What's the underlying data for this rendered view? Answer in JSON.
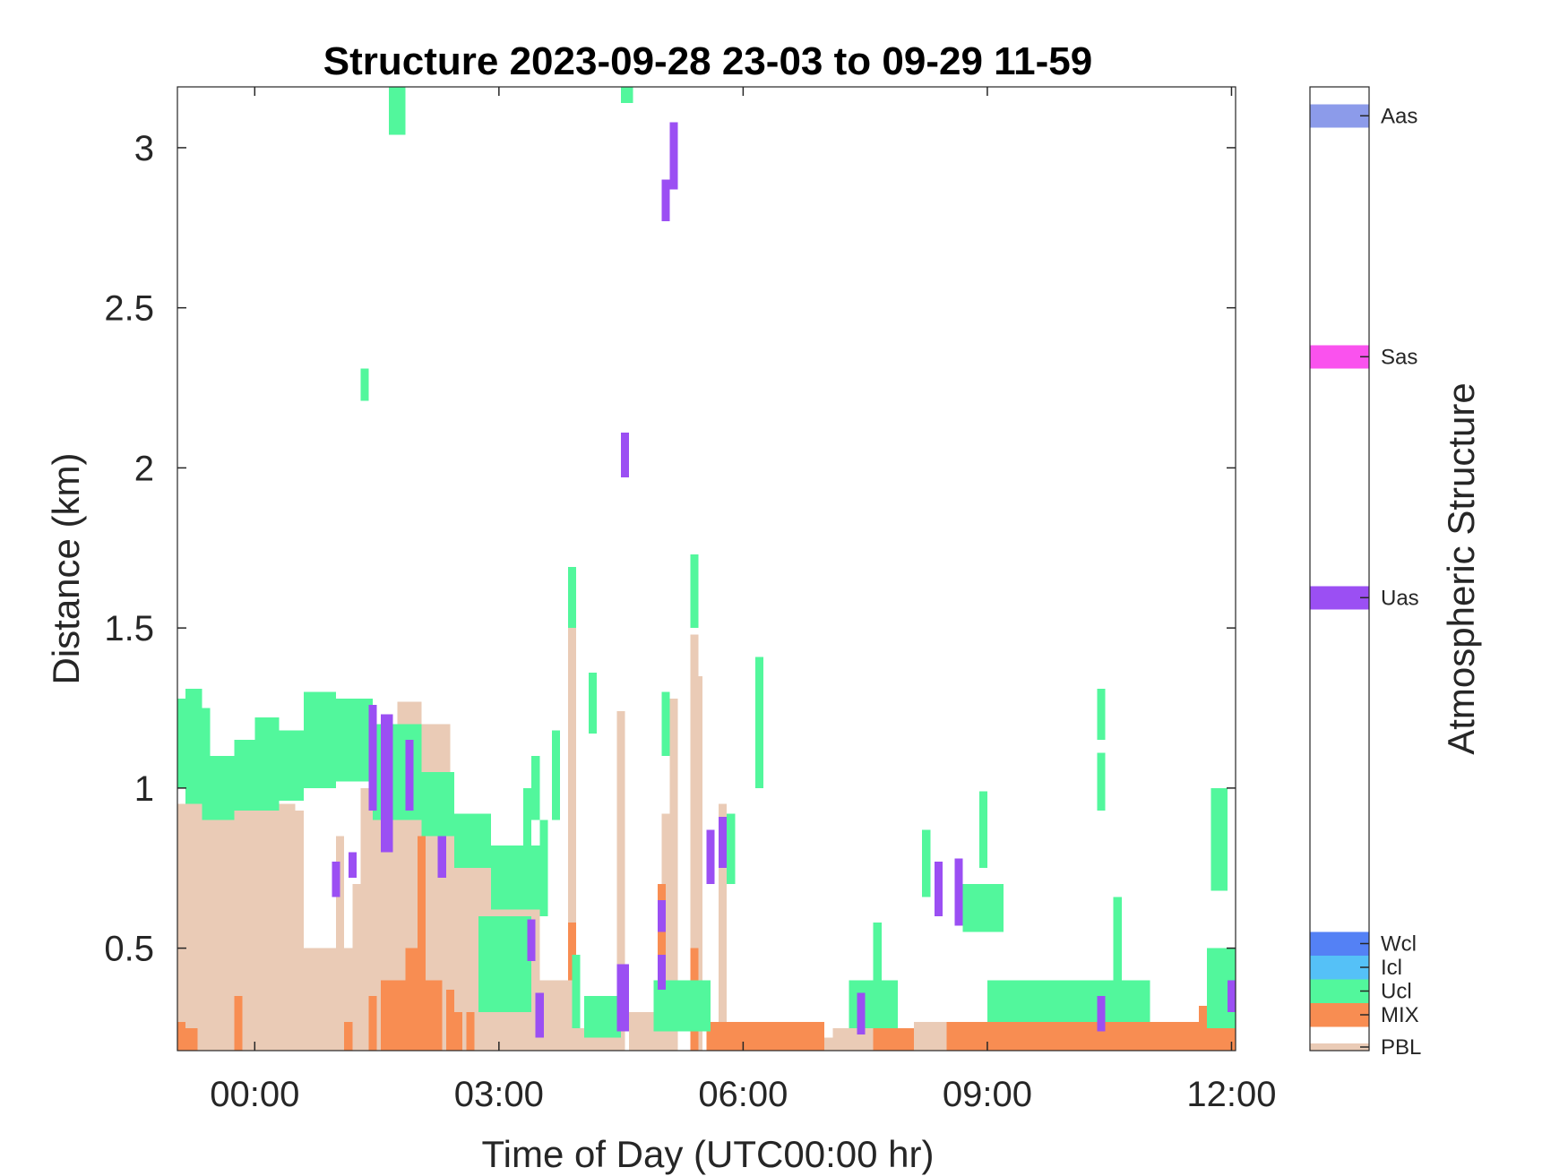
{
  "chart_data": {
    "type": "heatmap",
    "title": "Structure 2023-09-28 23-03 to 09-29 11-59",
    "xlabel": "Time of Day (UTC00:00 hr)",
    "ylabel": "Distance (km)",
    "xlim_hours": [
      -0.95,
      12.05
    ],
    "ylim_km": [
      0.18,
      3.19
    ],
    "x_ticks": [
      {
        "hours": 0,
        "label": "00:00"
      },
      {
        "hours": 3,
        "label": "03:00"
      },
      {
        "hours": 6,
        "label": "06:00"
      },
      {
        "hours": 9,
        "label": "09:00"
      },
      {
        "hours": 12,
        "label": "12:00"
      }
    ],
    "y_ticks": [
      {
        "km": 0.5,
        "label": "0.5"
      },
      {
        "km": 1,
        "label": "1"
      },
      {
        "km": 1.5,
        "label": "1.5"
      },
      {
        "km": 2,
        "label": "2"
      },
      {
        "km": 2.5,
        "label": "2.5"
      },
      {
        "km": 3,
        "label": "3"
      }
    ],
    "colorbar": {
      "label": "Atmospheric Structure",
      "classes": [
        {
          "code": "PBL",
          "color": "#EACBB6"
        },
        {
          "code": "MIX",
          "color": "#F88D52"
        },
        {
          "code": "Ucl",
          "color": "#52F79C"
        },
        {
          "code": "Icl",
          "color": "#55C1F7"
        },
        {
          "code": "Wcl",
          "color": "#5481F5"
        },
        {
          "code": "Uas",
          "color": "#9B4FF3"
        },
        {
          "code": "Sas",
          "color": "#FA52EE"
        },
        {
          "code": "Aas",
          "color": "#8C9BEA"
        }
      ]
    },
    "cells": [
      {
        "cls": "PBL",
        "x0": -0.95,
        "x1": 0.5,
        "y0": 0.18,
        "y1": 0.95
      },
      {
        "cls": "PBL",
        "x0": 0.5,
        "x1": 0.6,
        "y0": 0.18,
        "y1": 0.93
      },
      {
        "cls": "PBL",
        "x0": 0.6,
        "x1": 1.6,
        "y0": 0.18,
        "y1": 0.5
      },
      {
        "cls": "PBL",
        "x0": 1.0,
        "x1": 1.1,
        "y0": 0.18,
        "y1": 0.85
      },
      {
        "cls": "PBL",
        "x0": 1.2,
        "x1": 1.3,
        "y0": 0.18,
        "y1": 0.7
      },
      {
        "cls": "PBL",
        "x0": 1.3,
        "x1": 1.45,
        "y0": 0.18,
        "y1": 1.0
      },
      {
        "cls": "PBL",
        "x0": 1.45,
        "x1": 1.75,
        "y0": 0.18,
        "y1": 1.18
      },
      {
        "cls": "PBL",
        "x0": 1.75,
        "x1": 2.05,
        "y0": 0.18,
        "y1": 1.27
      },
      {
        "cls": "PBL",
        "x0": 2.05,
        "x1": 2.4,
        "y0": 0.18,
        "y1": 1.2
      },
      {
        "cls": "PBL",
        "x0": 2.4,
        "x1": 2.9,
        "y0": 0.18,
        "y1": 0.85
      },
      {
        "cls": "PBL",
        "x0": 2.9,
        "x1": 3.5,
        "y0": 0.18,
        "y1": 0.65
      },
      {
        "cls": "PBL",
        "x0": 3.5,
        "x1": 3.85,
        "y0": 0.18,
        "y1": 0.4
      },
      {
        "cls": "PBL",
        "x0": 3.85,
        "x1": 3.95,
        "y0": 0.18,
        "y1": 1.5
      },
      {
        "cls": "PBL",
        "x0": 3.95,
        "x1": 4.45,
        "y0": 0.18,
        "y1": 0.25
      },
      {
        "cls": "PBL",
        "x0": 4.45,
        "x1": 4.55,
        "y0": 0.18,
        "y1": 1.24
      },
      {
        "cls": "PBL",
        "x0": 4.6,
        "x1": 5.0,
        "y0": 0.18,
        "y1": 0.3
      },
      {
        "cls": "PBL",
        "x0": 5.0,
        "x1": 5.1,
        "y0": 0.18,
        "y1": 0.92
      },
      {
        "cls": "PBL",
        "x0": 5.1,
        "x1": 5.2,
        "y0": 0.18,
        "y1": 1.28
      },
      {
        "cls": "PBL",
        "x0": 5.35,
        "x1": 5.45,
        "y0": 0.18,
        "y1": 1.48
      },
      {
        "cls": "PBL",
        "x0": 5.45,
        "x1": 5.5,
        "y0": 0.18,
        "y1": 1.35
      },
      {
        "cls": "PBL",
        "x0": 5.7,
        "x1": 5.8,
        "y0": 0.18,
        "y1": 0.95
      },
      {
        "cls": "PBL",
        "x0": 5.8,
        "x1": 12.05,
        "y0": 0.18,
        "y1": 0.22
      },
      {
        "cls": "PBL",
        "x0": 7.1,
        "x1": 7.6,
        "y0": 0.18,
        "y1": 0.25
      },
      {
        "cls": "PBL",
        "x0": 8.1,
        "x1": 8.5,
        "y0": 0.18,
        "y1": 0.27
      },
      {
        "cls": "MIX",
        "x0": -0.95,
        "x1": -0.85,
        "y0": 0.18,
        "y1": 0.27
      },
      {
        "cls": "MIX",
        "x0": -0.85,
        "x1": -0.7,
        "y0": 0.18,
        "y1": 0.25
      },
      {
        "cls": "MIX",
        "x0": -0.25,
        "x1": -0.15,
        "y0": 0.18,
        "y1": 0.35
      },
      {
        "cls": "MIX",
        "x0": 1.1,
        "x1": 1.2,
        "y0": 0.18,
        "y1": 0.27
      },
      {
        "cls": "MIX",
        "x0": 1.4,
        "x1": 1.5,
        "y0": 0.18,
        "y1": 0.35
      },
      {
        "cls": "MIX",
        "x0": 1.55,
        "x1": 1.85,
        "y0": 0.18,
        "y1": 0.4
      },
      {
        "cls": "MIX",
        "x0": 1.85,
        "x1": 2.0,
        "y0": 0.18,
        "y1": 0.5
      },
      {
        "cls": "MIX",
        "x0": 2.0,
        "x1": 2.1,
        "y0": 0.18,
        "y1": 0.85
      },
      {
        "cls": "MIX",
        "x0": 2.1,
        "x1": 2.3,
        "y0": 0.18,
        "y1": 0.4
      },
      {
        "cls": "MIX",
        "x0": 2.35,
        "x1": 2.45,
        "y0": 0.18,
        "y1": 0.37
      },
      {
        "cls": "MIX",
        "x0": 2.45,
        "x1": 2.55,
        "y0": 0.18,
        "y1": 0.3
      },
      {
        "cls": "MIX",
        "x0": 2.6,
        "x1": 2.7,
        "y0": 0.18,
        "y1": 0.3
      },
      {
        "cls": "MIX",
        "x0": 3.85,
        "x1": 3.95,
        "y0": 0.4,
        "y1": 0.58
      },
      {
        "cls": "MIX",
        "x0": 4.95,
        "x1": 5.05,
        "y0": 0.4,
        "y1": 0.7
      },
      {
        "cls": "MIX",
        "x0": 5.35,
        "x1": 5.45,
        "y0": 0.18,
        "y1": 0.5
      },
      {
        "cls": "MIX",
        "x0": 5.55,
        "x1": 7.0,
        "y0": 0.18,
        "y1": 0.27
      },
      {
        "cls": "MIX",
        "x0": 7.6,
        "x1": 8.1,
        "y0": 0.18,
        "y1": 0.25
      },
      {
        "cls": "MIX",
        "x0": 8.5,
        "x1": 12.05,
        "y0": 0.18,
        "y1": 0.27
      },
      {
        "cls": "MIX",
        "x0": 9.9,
        "x1": 10.4,
        "y0": 0.18,
        "y1": 0.3
      },
      {
        "cls": "MIX",
        "x0": 11.6,
        "x1": 12.05,
        "y0": 0.18,
        "y1": 0.32
      },
      {
        "cls": "Ucl",
        "x0": -0.95,
        "x1": -0.85,
        "y0": 1.0,
        "y1": 1.28
      },
      {
        "cls": "Ucl",
        "x0": -0.85,
        "x1": -0.65,
        "y0": 0.95,
        "y1": 1.31
      },
      {
        "cls": "Ucl",
        "x0": -0.65,
        "x1": -0.55,
        "y0": 0.9,
        "y1": 1.25
      },
      {
        "cls": "Ucl",
        "x0": -0.55,
        "x1": -0.25,
        "y0": 0.9,
        "y1": 1.1
      },
      {
        "cls": "Ucl",
        "x0": -0.25,
        "x1": 0.0,
        "y0": 0.93,
        "y1": 1.15
      },
      {
        "cls": "Ucl",
        "x0": 0.0,
        "x1": 0.3,
        "y0": 0.93,
        "y1": 1.22
      },
      {
        "cls": "Ucl",
        "x0": 0.3,
        "x1": 0.6,
        "y0": 0.96,
        "y1": 1.18
      },
      {
        "cls": "Ucl",
        "x0": 0.6,
        "x1": 1.0,
        "y0": 1.0,
        "y1": 1.3
      },
      {
        "cls": "Ucl",
        "x0": 1.0,
        "x1": 1.45,
        "y0": 1.02,
        "y1": 1.28
      },
      {
        "cls": "Ucl",
        "x0": 1.45,
        "x1": 2.05,
        "y0": 0.9,
        "y1": 1.2
      },
      {
        "cls": "Ucl",
        "x0": 2.05,
        "x1": 2.45,
        "y0": 0.85,
        "y1": 1.05
      },
      {
        "cls": "Ucl",
        "x0": 2.45,
        "x1": 2.9,
        "y0": 0.75,
        "y1": 0.92
      },
      {
        "cls": "Ucl",
        "x0": 2.9,
        "x1": 3.5,
        "y0": 0.62,
        "y1": 0.82
      },
      {
        "cls": "Ucl",
        "x0": 3.5,
        "x1": 3.6,
        "y0": 0.6,
        "y1": 0.9
      },
      {
        "cls": "Ucl",
        "x0": 2.75,
        "x1": 3.4,
        "y0": 0.3,
        "y1": 0.6
      },
      {
        "cls": "Ucl",
        "x0": 3.3,
        "x1": 3.4,
        "y0": 0.7,
        "y1": 1.0
      },
      {
        "cls": "Ucl",
        "x0": 3.4,
        "x1": 3.5,
        "y0": 0.9,
        "y1": 1.1
      },
      {
        "cls": "Ucl",
        "x0": 3.65,
        "x1": 3.75,
        "y0": 0.9,
        "y1": 1.18
      },
      {
        "cls": "Ucl",
        "x0": 3.85,
        "x1": 3.95,
        "y0": 1.5,
        "y1": 1.69
      },
      {
        "cls": "Ucl",
        "x0": 4.1,
        "x1": 4.2,
        "y0": 1.17,
        "y1": 1.36
      },
      {
        "cls": "Ucl",
        "x0": 3.9,
        "x1": 4.0,
        "y0": 0.25,
        "y1": 0.48
      },
      {
        "cls": "Ucl",
        "x0": 4.05,
        "x1": 4.5,
        "y0": 0.22,
        "y1": 0.35
      },
      {
        "cls": "Ucl",
        "x0": 5.0,
        "x1": 5.1,
        "y0": 1.1,
        "y1": 1.3
      },
      {
        "cls": "Ucl",
        "x0": 5.35,
        "x1": 5.45,
        "y0": 1.5,
        "y1": 1.73
      },
      {
        "cls": "Ucl",
        "x0": 4.9,
        "x1": 5.6,
        "y0": 0.24,
        "y1": 0.4
      },
      {
        "cls": "Ucl",
        "x0": 5.8,
        "x1": 5.9,
        "y0": 0.7,
        "y1": 0.92
      },
      {
        "cls": "Ucl",
        "x0": 6.15,
        "x1": 6.25,
        "y0": 1.0,
        "y1": 1.41
      },
      {
        "cls": "Ucl",
        "x0": 7.3,
        "x1": 7.9,
        "y0": 0.25,
        "y1": 0.4
      },
      {
        "cls": "Ucl",
        "x0": 7.6,
        "x1": 7.7,
        "y0": 0.4,
        "y1": 0.58
      },
      {
        "cls": "Ucl",
        "x0": 8.2,
        "x1": 8.3,
        "y0": 0.66,
        "y1": 0.87
      },
      {
        "cls": "Ucl",
        "x0": 8.9,
        "x1": 9.0,
        "y0": 0.75,
        "y1": 0.99
      },
      {
        "cls": "Ucl",
        "x0": 8.7,
        "x1": 9.2,
        "y0": 0.55,
        "y1": 0.7
      },
      {
        "cls": "Ucl",
        "x0": 9.0,
        "x1": 11.0,
        "y0": 0.27,
        "y1": 0.4
      },
      {
        "cls": "Ucl",
        "x0": 10.35,
        "x1": 10.45,
        "y0": 1.15,
        "y1": 1.31
      },
      {
        "cls": "Ucl",
        "x0": 10.35,
        "x1": 10.45,
        "y0": 0.93,
        "y1": 1.11
      },
      {
        "cls": "Ucl",
        "x0": 10.55,
        "x1": 10.65,
        "y0": 0.35,
        "y1": 0.66
      },
      {
        "cls": "Ucl",
        "x0": 11.75,
        "x1": 11.95,
        "y0": 0.68,
        "y1": 1.0
      },
      {
        "cls": "Ucl",
        "x0": 11.7,
        "x1": 12.05,
        "y0": 0.25,
        "y1": 0.5
      },
      {
        "cls": "Ucl",
        "x0": 1.65,
        "x1": 1.75,
        "y0": 3.04,
        "y1": 3.19
      },
      {
        "cls": "Ucl",
        "x0": 1.75,
        "x1": 1.85,
        "y0": 3.04,
        "y1": 3.19
      },
      {
        "cls": "Ucl",
        "x0": 4.5,
        "x1": 4.65,
        "y0": 3.14,
        "y1": 3.19
      },
      {
        "cls": "Ucl",
        "x0": 1.3,
        "x1": 1.4,
        "y0": 2.21,
        "y1": 2.31
      },
      {
        "cls": "Uas",
        "x0": 1.4,
        "x1": 1.5,
        "y0": 0.93,
        "y1": 1.26
      },
      {
        "cls": "Uas",
        "x0": 1.55,
        "x1": 1.7,
        "y0": 0.8,
        "y1": 1.23
      },
      {
        "cls": "Uas",
        "x0": 1.85,
        "x1": 1.95,
        "y0": 0.93,
        "y1": 1.15
      },
      {
        "cls": "Uas",
        "x0": 0.95,
        "x1": 1.05,
        "y0": 0.66,
        "y1": 0.77
      },
      {
        "cls": "Uas",
        "x0": 1.15,
        "x1": 1.25,
        "y0": 0.72,
        "y1": 0.8
      },
      {
        "cls": "Uas",
        "x0": 2.25,
        "x1": 2.35,
        "y0": 0.72,
        "y1": 0.85
      },
      {
        "cls": "Uas",
        "x0": 3.35,
        "x1": 3.45,
        "y0": 0.46,
        "y1": 0.59
      },
      {
        "cls": "Uas",
        "x0": 3.45,
        "x1": 3.55,
        "y0": 0.22,
        "y1": 0.36
      },
      {
        "cls": "Uas",
        "x0": 4.5,
        "x1": 4.6,
        "y0": 1.97,
        "y1": 2.11
      },
      {
        "cls": "Uas",
        "x0": 4.45,
        "x1": 4.6,
        "y0": 0.24,
        "y1": 0.45
      },
      {
        "cls": "Uas",
        "x0": 5.0,
        "x1": 5.1,
        "y0": 2.77,
        "y1": 2.9
      },
      {
        "cls": "Uas",
        "x0": 5.1,
        "x1": 5.2,
        "y0": 2.87,
        "y1": 3.08
      },
      {
        "cls": "Uas",
        "x0": 5.55,
        "x1": 5.65,
        "y0": 0.7,
        "y1": 0.87
      },
      {
        "cls": "Uas",
        "x0": 5.7,
        "x1": 5.8,
        "y0": 0.75,
        "y1": 0.91
      },
      {
        "cls": "Uas",
        "x0": 4.95,
        "x1": 5.05,
        "y0": 0.55,
        "y1": 0.65
      },
      {
        "cls": "Uas",
        "x0": 4.95,
        "x1": 5.05,
        "y0": 0.37,
        "y1": 0.48
      },
      {
        "cls": "Uas",
        "x0": 7.4,
        "x1": 7.5,
        "y0": 0.23,
        "y1": 0.36
      },
      {
        "cls": "Uas",
        "x0": 8.35,
        "x1": 8.45,
        "y0": 0.6,
        "y1": 0.77
      },
      {
        "cls": "Uas",
        "x0": 8.6,
        "x1": 8.7,
        "y0": 0.57,
        "y1": 0.78
      },
      {
        "cls": "Uas",
        "x0": 10.35,
        "x1": 10.45,
        "y0": 0.24,
        "y1": 0.35
      },
      {
        "cls": "Uas",
        "x0": 11.95,
        "x1": 12.05,
        "y0": 0.3,
        "y1": 0.4
      }
    ]
  }
}
